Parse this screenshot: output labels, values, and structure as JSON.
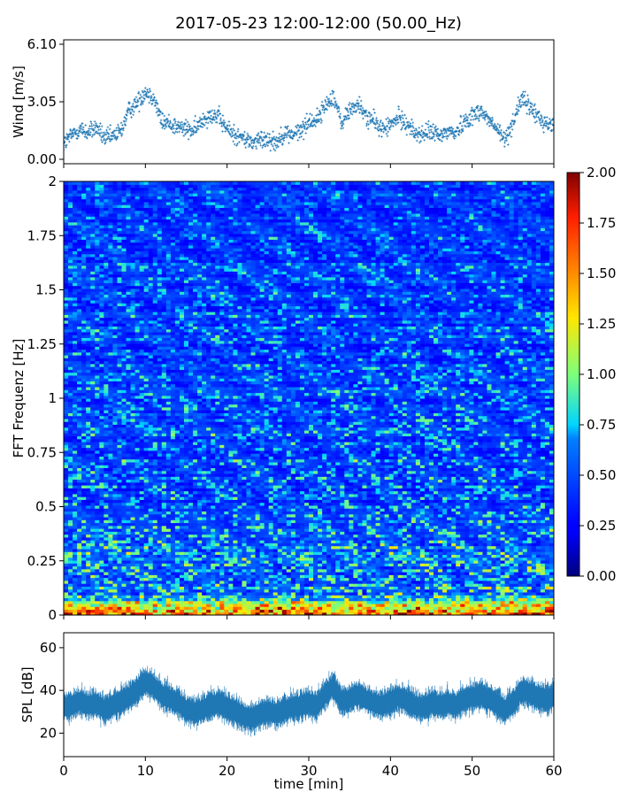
{
  "chart_data": [
    {
      "type": "scatter",
      "title": "2017-05-23 12:00-12:00 (50.00_Hz)",
      "ylabel": "Wind [m/s]",
      "ylim": [
        0,
        6.1
      ],
      "yticks": [
        "0.00",
        "3.05",
        "6.10"
      ],
      "xlim": [
        0,
        60
      ],
      "color": "#1f77b4",
      "marker": "+",
      "series": [
        {
          "x": [
            0,
            1,
            2,
            3,
            4,
            5,
            6,
            7,
            8,
            9,
            10,
            11,
            12,
            13,
            14,
            15,
            16,
            17,
            18,
            19,
            20,
            21,
            22,
            23,
            24,
            25,
            26,
            27,
            28,
            29,
            30,
            31,
            32,
            33,
            34,
            35,
            36,
            37,
            38,
            39,
            40,
            41,
            42,
            43,
            44,
            45,
            46,
            47,
            48,
            49,
            50,
            51,
            52,
            53,
            54,
            55,
            56,
            57,
            58,
            59,
            60
          ],
          "y": [
            0.8,
            1.3,
            1.6,
            1.4,
            1.7,
            1.1,
            1.2,
            1.5,
            2.6,
            3.0,
            3.6,
            3.3,
            2.0,
            1.9,
            1.7,
            1.6,
            1.5,
            2.1,
            2.4,
            2.2,
            1.6,
            1.3,
            1.1,
            0.9,
            1.0,
            1.1,
            0.9,
            1.4,
            1.3,
            1.5,
            2.0,
            2.1,
            2.8,
            3.4,
            1.9,
            2.6,
            2.9,
            2.3,
            2.0,
            1.6,
            1.8,
            2.2,
            1.9,
            1.4,
            1.3,
            1.5,
            1.2,
            1.5,
            1.4,
            2.0,
            2.3,
            2.6,
            2.1,
            1.6,
            1.0,
            2.0,
            3.2,
            2.8,
            2.3,
            1.9,
            1.8
          ]
        }
      ]
    },
    {
      "type": "heatmap",
      "ylabel": "FFT Frequenz [Hz]",
      "xlim": [
        0,
        60
      ],
      "ylim": [
        0,
        2
      ],
      "yticks": [
        "0",
        "0.25",
        "0.5",
        "0.75",
        "1",
        "1.25",
        "1.5",
        "1.75",
        "2"
      ],
      "colormap": "jet",
      "colorbar": {
        "range": [
          0,
          2
        ],
        "ticks": [
          "0.00",
          "0.25",
          "0.50",
          "0.75",
          "1.00",
          "1.25",
          "1.50",
          "1.75",
          "2.00"
        ]
      },
      "summary": {
        "dominant_range": [
          0.2,
          0.5
        ],
        "low_frequency_band_hz": [
          0,
          0.1
        ],
        "low_frequency_level": 1.7
      }
    },
    {
      "type": "line",
      "ylabel": "SPL [dB]",
      "xlabel": "time [min]",
      "xlim": [
        0,
        60
      ],
      "ylim": [
        9,
        67
      ],
      "yticks": [
        "20",
        "40",
        "60"
      ],
      "xticks": [
        "0",
        "10",
        "20",
        "30",
        "40",
        "50",
        "60"
      ],
      "color": "#1f77b4",
      "series": [
        {
          "x": [
            0,
            1,
            2,
            3,
            4,
            5,
            6,
            7,
            8,
            9,
            10,
            11,
            12,
            13,
            14,
            15,
            16,
            17,
            18,
            19,
            20,
            21,
            22,
            23,
            24,
            25,
            26,
            27,
            28,
            29,
            30,
            31,
            32,
            33,
            34,
            35,
            36,
            37,
            38,
            39,
            40,
            41,
            42,
            43,
            44,
            45,
            46,
            47,
            48,
            49,
            50,
            51,
            52,
            53,
            54,
            55,
            56,
            57,
            58,
            59,
            60
          ],
          "y": [
            32,
            33,
            35,
            33,
            34,
            31,
            33,
            35,
            37,
            40,
            44,
            42,
            38,
            36,
            34,
            31,
            30,
            31,
            33,
            34,
            32,
            30,
            28,
            27,
            29,
            30,
            29,
            31,
            32,
            33,
            34,
            33,
            38,
            42,
            35,
            36,
            38,
            36,
            34,
            33,
            35,
            37,
            35,
            33,
            32,
            34,
            33,
            34,
            33,
            36,
            37,
            38,
            36,
            34,
            31,
            34,
            40,
            39,
            37,
            36,
            37
          ]
        }
      ]
    }
  ]
}
